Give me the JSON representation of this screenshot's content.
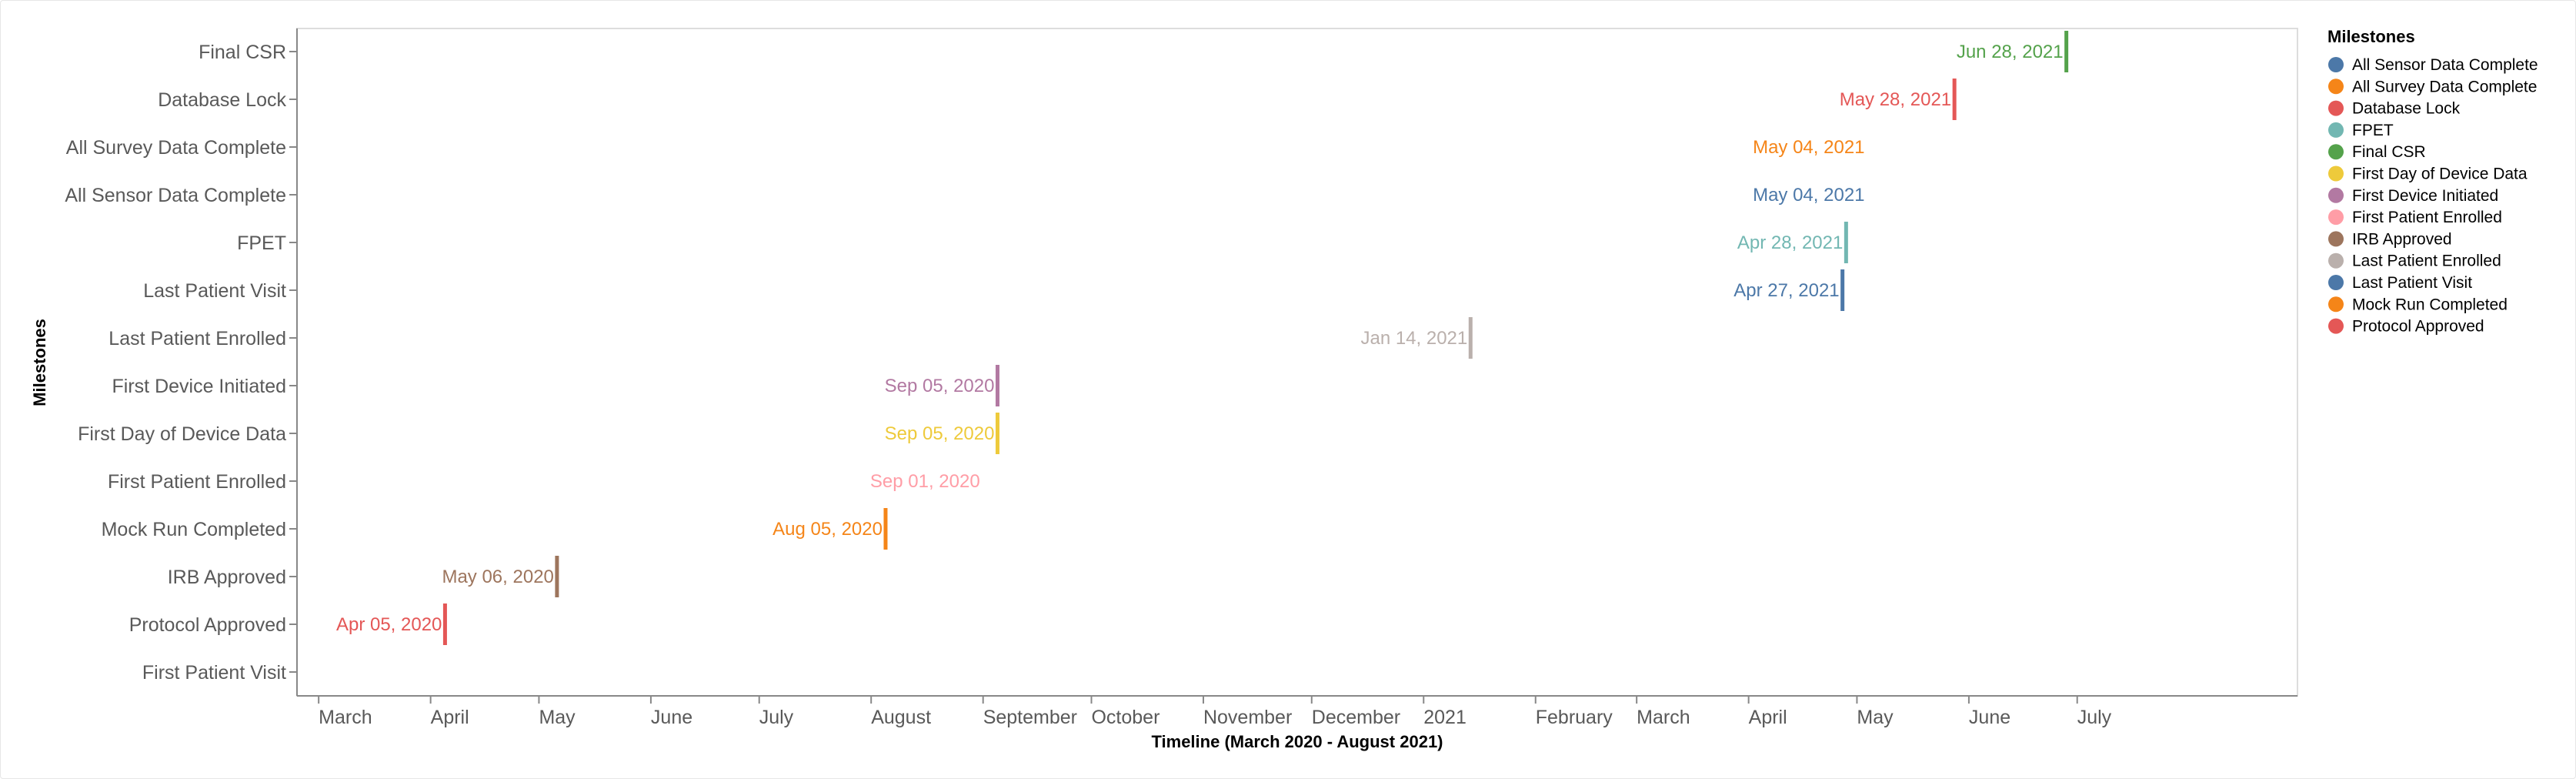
{
  "chart_data": {
    "type": "tick",
    "xlabel": "Timeline (March 2020 - August 2021)",
    "ylabel": "Milestones",
    "x_domain": [
      "2020-02-24",
      "2021-08-31"
    ],
    "x_ticks": [
      {
        "date": "2020-03-01",
        "label": "March"
      },
      {
        "date": "2020-04-01",
        "label": "April"
      },
      {
        "date": "2020-05-01",
        "label": "May"
      },
      {
        "date": "2020-06-01",
        "label": "June"
      },
      {
        "date": "2020-07-01",
        "label": "July"
      },
      {
        "date": "2020-08-01",
        "label": "August"
      },
      {
        "date": "2020-09-01",
        "label": "September"
      },
      {
        "date": "2020-10-01",
        "label": "October"
      },
      {
        "date": "2020-11-01",
        "label": "November"
      },
      {
        "date": "2020-12-01",
        "label": "December"
      },
      {
        "date": "2021-01-01",
        "label": "2021"
      },
      {
        "date": "2021-02-01",
        "label": "February"
      },
      {
        "date": "2021-03-01",
        "label": "March"
      },
      {
        "date": "2021-04-01",
        "label": "April"
      },
      {
        "date": "2021-05-01",
        "label": "May"
      },
      {
        "date": "2021-06-01",
        "label": "June"
      },
      {
        "date": "2021-07-01",
        "label": "July"
      }
    ],
    "categories": [
      "Final CSR",
      "Database Lock",
      "All Survey Data Complete",
      "All Sensor Data Complete",
      "FPET",
      "Last Patient Visit",
      "Last Patient Enrolled",
      "First Device Initiated",
      "First Day of Device Data",
      "First Patient Enrolled",
      "Mock Run Completed",
      "IRB Approved",
      "Protocol Approved",
      "First Patient Visit"
    ],
    "points": [
      {
        "milestone": "Final CSR",
        "date": "2021-06-28",
        "label": "Jun 28, 2021",
        "tick": true
      },
      {
        "milestone": "Database Lock",
        "date": "2021-05-28",
        "label": "May 28, 2021",
        "tick": true
      },
      {
        "milestone": "All Survey Data Complete",
        "date": "2021-05-04",
        "label": "May 04, 2021",
        "tick": false
      },
      {
        "milestone": "All Sensor Data Complete",
        "date": "2021-05-04",
        "label": "May 04, 2021",
        "tick": false
      },
      {
        "milestone": "FPET",
        "date": "2021-04-28",
        "label": "Apr 28, 2021",
        "tick": true
      },
      {
        "milestone": "Last Patient Visit",
        "date": "2021-04-27",
        "label": "Apr 27, 2021",
        "tick": true
      },
      {
        "milestone": "Last Patient Enrolled",
        "date": "2021-01-14",
        "label": "Jan 14, 2021",
        "tick": true
      },
      {
        "milestone": "First Device Initiated",
        "date": "2020-09-05",
        "label": "Sep 05, 2020",
        "tick": true
      },
      {
        "milestone": "First Day of Device Data",
        "date": "2020-09-05",
        "label": "Sep 05, 2020",
        "tick": true
      },
      {
        "milestone": "First Patient Enrolled",
        "date": "2020-09-01",
        "label": "Sep 01, 2020",
        "tick": false
      },
      {
        "milestone": "Mock Run Completed",
        "date": "2020-08-05",
        "label": "Aug 05, 2020",
        "tick": true
      },
      {
        "milestone": "IRB Approved",
        "date": "2020-05-06",
        "label": "May 06, 2020",
        "tick": true
      },
      {
        "milestone": "Protocol Approved",
        "date": "2020-04-05",
        "label": "Apr 05, 2020",
        "tick": true
      }
    ],
    "legend": {
      "title": "Milestones",
      "placement": "right",
      "items": [
        {
          "label": "All Sensor Data Complete",
          "color": "#4c78a8"
        },
        {
          "label": "All Survey Data Complete",
          "color": "#f58518"
        },
        {
          "label": "Database Lock",
          "color": "#e45756"
        },
        {
          "label": "FPET",
          "color": "#72b7b2"
        },
        {
          "label": "Final CSR",
          "color": "#54a24b"
        },
        {
          "label": "First Day of Device Data",
          "color": "#eeca3b"
        },
        {
          "label": "First Device Initiated",
          "color": "#b279a2"
        },
        {
          "label": "First Patient Enrolled",
          "color": "#ff9da6"
        },
        {
          "label": "IRB Approved",
          "color": "#9d755d"
        },
        {
          "label": "Last Patient Enrolled",
          "color": "#bab0ac"
        },
        {
          "label": "Last Patient Visit",
          "color": "#4c78a8"
        },
        {
          "label": "Mock Run Completed",
          "color": "#f58518"
        },
        {
          "label": "Protocol Approved",
          "color": "#e45756"
        }
      ]
    },
    "grid": false
  }
}
